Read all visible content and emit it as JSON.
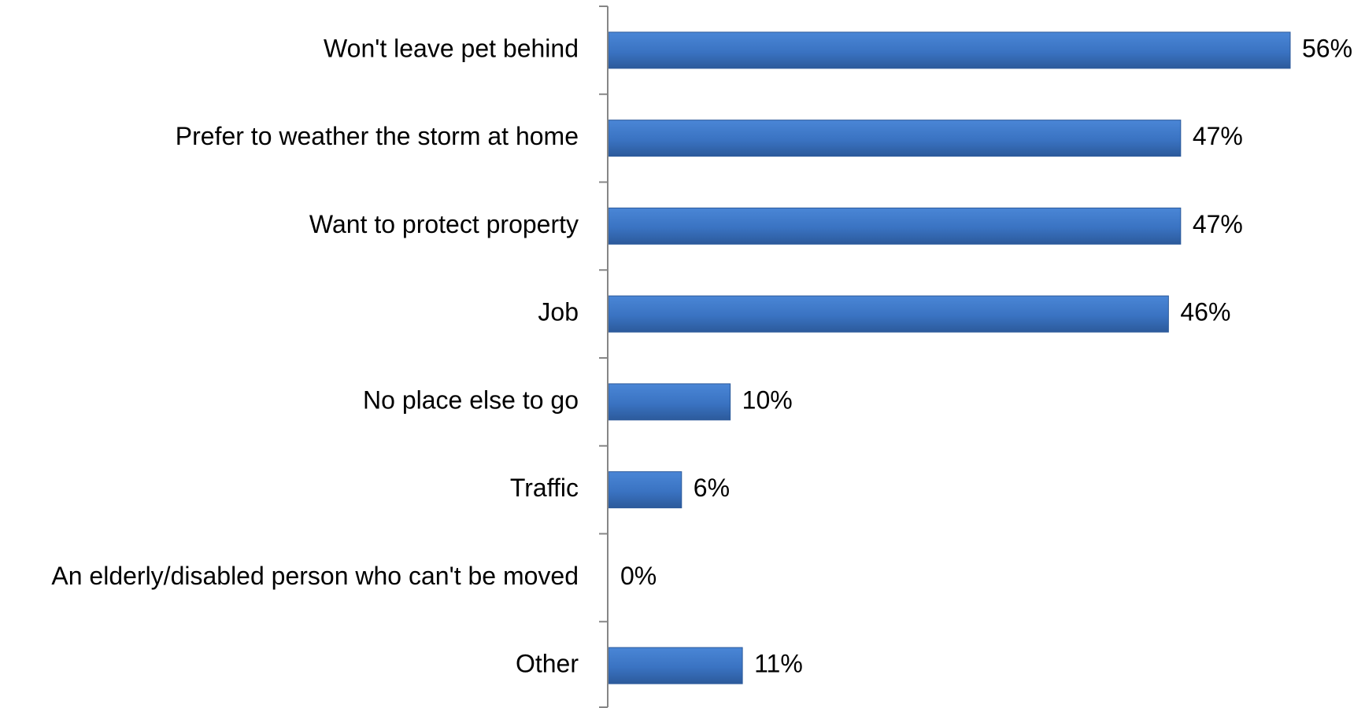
{
  "chart_data": {
    "type": "bar",
    "orientation": "horizontal",
    "categories": [
      "Won't leave pet behind",
      "Prefer to weather the storm at home",
      "Want to protect property",
      "Job",
      "No place else to go",
      "Traffic",
      "An elderly/disabled person who can't be moved",
      "Other"
    ],
    "values": [
      56,
      47,
      47,
      46,
      10,
      6,
      0,
      11
    ],
    "value_labels": [
      "56%",
      "47%",
      "47%",
      "46%",
      "10%",
      "6%",
      "0%",
      "11%"
    ],
    "unit": "%",
    "xlim": [
      0,
      60
    ],
    "grid": false,
    "legend": "none",
    "bar_color": "#3a73c2",
    "bar_color_dark": "#2c5a9b",
    "axis_color": "#868686"
  }
}
